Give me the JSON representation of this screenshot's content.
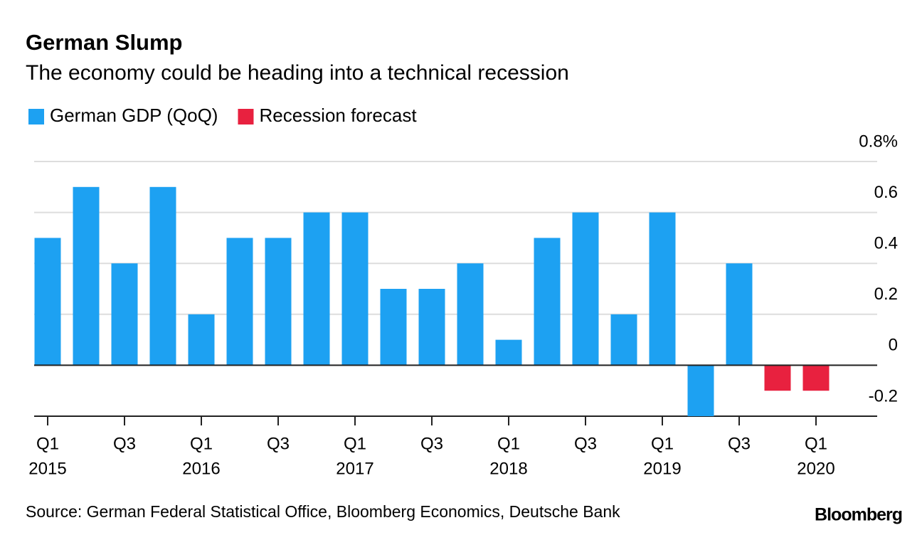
{
  "chart_data": {
    "type": "bar",
    "title": "German Slump",
    "subtitle": "The economy could be heading into a technical recession",
    "source": "Source: German Federal Statistical Office, Bloomberg Economics, Deutsche Bank",
    "brand": "Bloomberg",
    "categories": [
      "Q1",
      null,
      "Q3",
      null,
      "Q1",
      null,
      "Q3",
      null,
      "Q1",
      null,
      "Q3",
      null,
      "Q1",
      null,
      "Q3",
      null,
      "Q1",
      null,
      "Q3",
      null,
      "Q1"
    ],
    "years": [
      "2015",
      null,
      null,
      null,
      "2016",
      null,
      null,
      null,
      "2017",
      null,
      null,
      null,
      "2018",
      null,
      null,
      null,
      "2019",
      null,
      null,
      null,
      "2020"
    ],
    "series": [
      {
        "name": "German GDP (QoQ)",
        "color": "#1da1f2",
        "values": [
          0.5,
          0.7,
          0.4,
          0.7,
          0.2,
          0.5,
          0.5,
          0.6,
          0.6,
          0.3,
          0.3,
          0.4,
          0.1,
          0.5,
          0.6,
          0.2,
          0.6,
          -0.2,
          0.4,
          null,
          null
        ]
      },
      {
        "name": "Recession forecast",
        "color": "#e8213f",
        "values": [
          null,
          null,
          null,
          null,
          null,
          null,
          null,
          null,
          null,
          null,
          null,
          null,
          null,
          null,
          null,
          null,
          null,
          null,
          null,
          -0.1,
          -0.1
        ]
      }
    ],
    "ylim": [
      -0.2,
      0.8
    ],
    "yticks": [
      {
        "value": 0.8,
        "label": "0.8%"
      },
      0.6,
      0.4,
      0.2,
      0,
      -0.2
    ],
    "grid": true
  }
}
